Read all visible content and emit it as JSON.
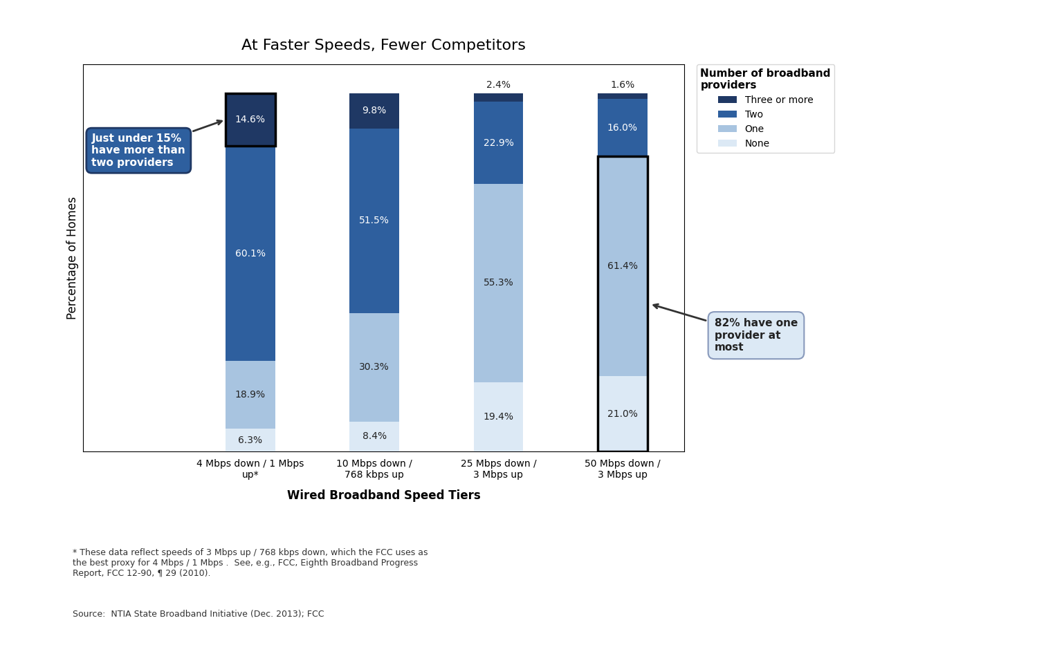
{
  "chart_data": {
    "type": "bar",
    "stacked": true,
    "title": "At Faster Speeds, Fewer Competitors",
    "x_label": "Wired Broadband Speed Tiers",
    "y_label": "Percentage of Homes",
    "categories": [
      "4 Mbps down / 1 Mbps\nup*",
      "10 Mbps down /\n768 kbps up",
      "25 Mbps down /\n3 Mbps up",
      "50 Mbps down /\n3 Mbps up"
    ],
    "series": [
      {
        "name": "None",
        "color": "#dce9f5",
        "values": [
          6.3,
          8.4,
          19.4,
          21.0
        ],
        "value_labels": [
          "6.3%",
          "8.4%",
          "19.4%",
          "21.0%"
        ]
      },
      {
        "name": "One",
        "color": "#a8c4e0",
        "values": [
          18.9,
          30.3,
          55.3,
          61.4
        ],
        "value_labels": [
          "18.9%",
          "30.3%",
          "55.3%",
          "61.4%"
        ]
      },
      {
        "name": "Two",
        "color": "#2e5f9e",
        "values": [
          60.1,
          51.5,
          22.9,
          16.0
        ],
        "value_labels": [
          "60.1%",
          "51.5%",
          "22.9%",
          "16.0%"
        ]
      },
      {
        "name": "Three or more",
        "color": "#1f3864",
        "values": [
          14.6,
          9.8,
          2.4,
          1.6
        ],
        "value_labels": [
          "14.6%",
          "9.8%",
          "2.4%",
          "1.6%"
        ]
      }
    ],
    "data_labels": true,
    "legend": "upper left",
    "legend_title": "Number of broadband\nproviders",
    "ylim": [
      0,
      108
    ],
    "yticks": [],
    "tick_labels": "x",
    "annotations": [
      {
        "text": "Just under 15%\nhave more than\ntwo providers",
        "category": "4 Mbps down / 1 Mbps\nup*",
        "series": [
          "Three or more"
        ]
      },
      {
        "text": "82% have one\nprovider at\nmost",
        "category": "50 Mbps down /\n3 Mbps up",
        "series": [
          "None",
          "One"
        ]
      }
    ],
    "notes": [
      "* These data reflect speeds of 3 Mbps up / 768 kbps down, which the FCC uses as\nthe best proxy for 4 Mbps / 1 Mbps .  See, e.g., FCC, Eighth Broadband Progress\nReport, FCC 12-90, ¶ 29 (2010).",
      "Source:  NTIA State Broadband Initiative (Dec. 2013); FCC"
    ]
  }
}
